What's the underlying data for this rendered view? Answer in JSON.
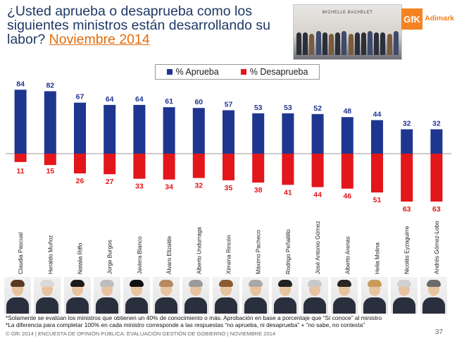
{
  "title": {
    "line1": "¿Usted aprueba o desaprueba como los",
    "line2": "siguientes ministros están desarrollando su",
    "line3_prefix": "labor?",
    "line3_accent": "Noviembre 2014"
  },
  "banner_text": "MICHELLE BACHELET",
  "brand": {
    "logo_text": "GfK",
    "name": "Adimark"
  },
  "colors": {
    "approve": "#1f3690",
    "disapprove": "#e3161b",
    "approve_label": "#1f3690",
    "disapprove_label": "#e3161b"
  },
  "chart_data": {
    "type": "bar",
    "categories": [
      "Claudia Pascual",
      "Heraldo Muñoz",
      "Natalia Riffo",
      "Jorge Burgos",
      "Javiera Blanco",
      "Álvaro Elizalde",
      "Alberto Undurraga",
      "Ximena Rincón",
      "Máximo Pacheco",
      "Rodrigo Peñailillo",
      "José Antonio Gómez",
      "Alberto Arenas",
      "Helia Molina",
      "Nicolás Eyzaguirre",
      "Andrés Gómez-Lobo"
    ],
    "series": [
      {
        "name": "% Aprueba",
        "values": [
          84,
          82,
          67,
          64,
          64,
          61,
          60,
          57,
          53,
          53,
          52,
          48,
          44,
          32,
          32
        ]
      },
      {
        "name": "% Desaprueba",
        "values": [
          11,
          15,
          26,
          27,
          33,
          34,
          32,
          35,
          38,
          41,
          44,
          46,
          51,
          63,
          63
        ]
      }
    ],
    "legend_position": "top-center",
    "grid": false
  },
  "notes": {
    "note1": "*Solamente se evalúan los ministros que obtienen un 40% de conocimiento o más. Aprobación en base a porcentaje que “Sí conoce” al ministro",
    "note2": "*La diferencia para completar 100% en cada ministro corresponde a las respuestas “no aprueba, ni desaprueba” + “no sabe, no contesta”"
  },
  "footer": "© GfK 2014 | ENCUESTA DE OPINIÓN PÚBLICA: EVALUACIÓN GESTIÓN DE GOBIERNO | NOVIEMBRE 2014",
  "page_number": "37"
}
